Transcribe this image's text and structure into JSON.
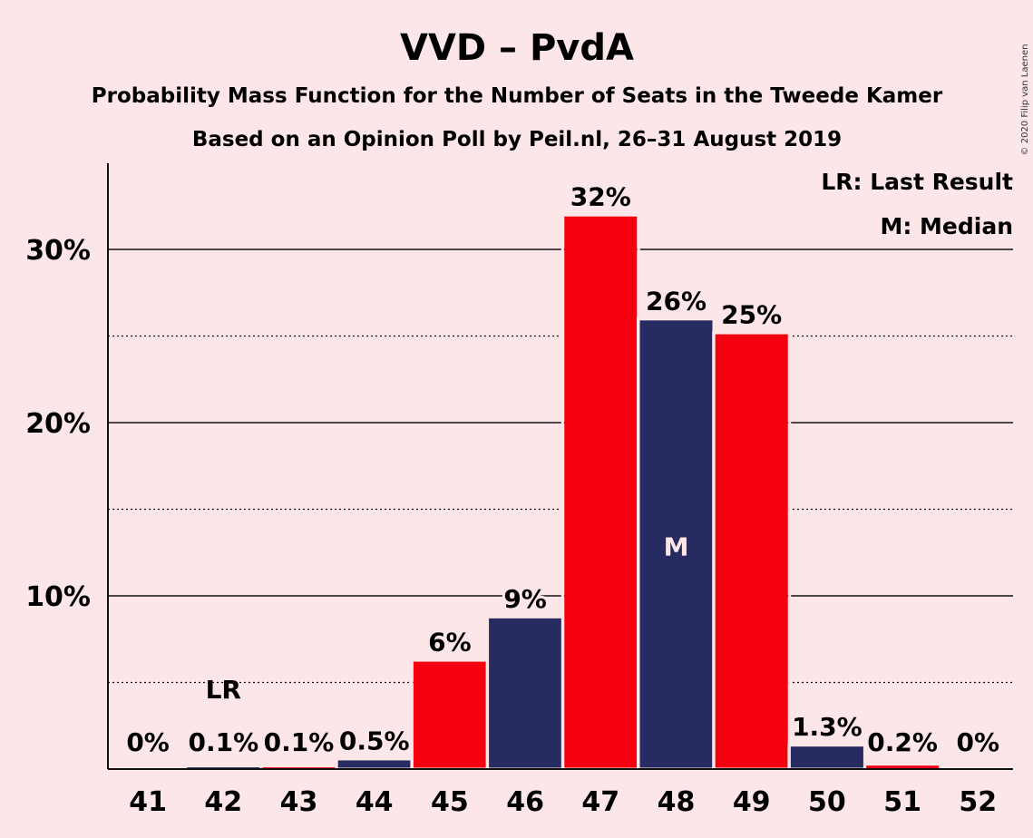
{
  "chart_data": {
    "type": "bar",
    "title": "VVD – PvdA",
    "subtitle_lines": [
      "Probability Mass Function for the Number of Seats in the Tweede Kamer",
      "Based on an Opinion Poll by Peil.nl, 26–31 August 2019"
    ],
    "copyright": "© 2020 Filip van Laenen",
    "categories": [
      "41",
      "42",
      "43",
      "44",
      "45",
      "46",
      "47",
      "48",
      "49",
      "50",
      "51",
      "52"
    ],
    "values": [
      0,
      0.1,
      0.1,
      0.5,
      6.2,
      8.7,
      31.9,
      25.9,
      25.1,
      1.3,
      0.2,
      0
    ],
    "data_labels": [
      "0%",
      "0.1%",
      "0.1%",
      "0.5%",
      "6%",
      "9%",
      "32%",
      "26%",
      "25%",
      "1.3%",
      "0.2%",
      "0%"
    ],
    "ylim": [
      0,
      35
    ],
    "yticks": [
      10,
      20,
      30
    ],
    "ytick_labels": [
      "10%",
      "20%",
      "30%"
    ],
    "grid": true,
    "legend": {
      "placement": "top-right",
      "entries": [
        "LR: Last Result",
        "M: Median"
      ]
    },
    "annotations": [
      {
        "category": "42",
        "text": "LR"
      },
      {
        "category": "48",
        "text": "M"
      }
    ],
    "colors": {
      "red": "#f5000f",
      "navy": "#262b62",
      "background": "#fce6e7",
      "text": "#111111",
      "median_label": "#fce6e7"
    },
    "bar_color_pattern": [
      "navy",
      "navy",
      "red",
      "navy",
      "red",
      "navy",
      "red",
      "navy",
      "red",
      "navy",
      "red",
      "navy"
    ]
  }
}
